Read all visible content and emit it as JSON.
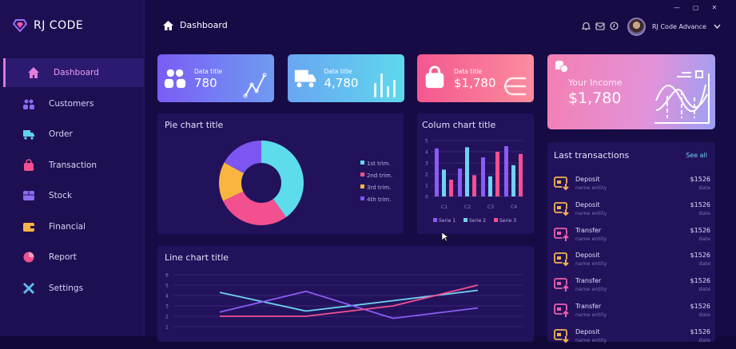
{
  "app": {
    "logo_text": "RJ CODE"
  },
  "window_controls": {
    "minimize": "—",
    "maximize": "▢",
    "close": "✕"
  },
  "sidebar": {
    "items": [
      {
        "label": "Dashboard",
        "icon": "home-icon",
        "color": "#e27ddc",
        "active": true
      },
      {
        "label": "Customers",
        "icon": "users-icon",
        "color": "#8a6cf0"
      },
      {
        "label": "Order",
        "icon": "truck-icon",
        "color": "#5fd3ef"
      },
      {
        "label": "Transaction",
        "icon": "bag-icon",
        "color": "#f0508f"
      },
      {
        "label": "Stock",
        "icon": "box-icon",
        "color": "#8a6cf0"
      },
      {
        "label": "Financial",
        "icon": "wallet-icon",
        "color": "#f6b544"
      },
      {
        "label": "Report",
        "icon": "pie-icon",
        "color": "#f0508f"
      },
      {
        "label": "Settings",
        "icon": "tools-icon",
        "color": "#5fb8f0"
      }
    ]
  },
  "header": {
    "title": "Dashboard",
    "user_name": "RJ Code Advance"
  },
  "stat_cards": [
    {
      "title": "Data title",
      "value": "780",
      "icon": "users-icon",
      "deco": "line-trend-icon",
      "from": "#7b5cf5",
      "to": "#6f9bf2"
    },
    {
      "title": "Data title",
      "value": "4,780",
      "icon": "truck-icon",
      "deco": "bars-icon",
      "from": "#6aa6f3",
      "to": "#5ed8ec"
    },
    {
      "title": "Data title",
      "value": "$1,780",
      "icon": "bag-icon",
      "deco": "lines-icon",
      "from": "#f5578e",
      "to": "#fb8d9e"
    }
  ],
  "income": {
    "label": "Your Income",
    "value": "$1,780"
  },
  "transactions": {
    "title": "Last transactions",
    "see_all": "See all",
    "items": [
      {
        "type": "Deposit",
        "entity": "name entity",
        "amount": "$1526",
        "date": "date",
        "color": "#f4b24e"
      },
      {
        "type": "Deposit",
        "entity": "name entity",
        "amount": "$1526",
        "date": "date",
        "color": "#f4b24e"
      },
      {
        "type": "Transfer",
        "entity": "name entity",
        "amount": "$1526",
        "date": "date",
        "color": "#ef5fa8"
      },
      {
        "type": "Deposit",
        "entity": "name entity",
        "amount": "$1526",
        "date": "date",
        "color": "#f4b24e"
      },
      {
        "type": "Transfer",
        "entity": "name entity",
        "amount": "$1526",
        "date": "date",
        "color": "#ef5fa8"
      },
      {
        "type": "Transfer",
        "entity": "name entity",
        "amount": "$1526",
        "date": "date",
        "color": "#ef5fa8"
      },
      {
        "type": "Deposit",
        "entity": "name entity",
        "amount": "$1526",
        "date": "date",
        "color": "#f4b24e"
      }
    ]
  },
  "chart_data": [
    {
      "type": "pie",
      "title": "Pie chart title",
      "donut": true,
      "legend": "right",
      "labels": [
        "1st trim.",
        "2nd trim.",
        "3rd trim.",
        "4th trim."
      ],
      "values": [
        40,
        28,
        15,
        17
      ],
      "colors": [
        "#5ddcec",
        "#f2508f",
        "#f9b540",
        "#7d55f0"
      ]
    },
    {
      "type": "bar",
      "title": "Colum chart title",
      "categories": [
        "C1",
        "C2",
        "C3",
        "C4"
      ],
      "ylim": [
        0,
        5
      ],
      "yticks": [
        0,
        1,
        2,
        3,
        4,
        5
      ],
      "grid": true,
      "legend": "bottom",
      "series": [
        {
          "name": "Serie 1",
          "values": [
            4.3,
            2.5,
            3.5,
            4.5
          ],
          "color": "#8a5cf2"
        },
        {
          "name": "Serie 2",
          "values": [
            2.4,
            4.4,
            1.8,
            2.8
          ],
          "color": "#6fd2f0"
        },
        {
          "name": "Serie 3",
          "values": [
            1.5,
            1.9,
            4.0,
            3.8
          ],
          "color": "#f2508f"
        }
      ]
    },
    {
      "type": "line",
      "title": "Line chart title",
      "ylim": [
        0,
        6
      ],
      "yticks": [
        1,
        2,
        3,
        4,
        5,
        6
      ],
      "grid": true,
      "series": [
        {
          "values": [
            4.3,
            2.5,
            3.5,
            4.5
          ],
          "color": "#6fd2f0"
        },
        {
          "values": [
            2.4,
            4.4,
            1.8,
            2.8
          ],
          "color": "#8a5cf2"
        },
        {
          "values": [
            2,
            2,
            3,
            5
          ],
          "color": "#f2508f"
        }
      ]
    }
  ]
}
